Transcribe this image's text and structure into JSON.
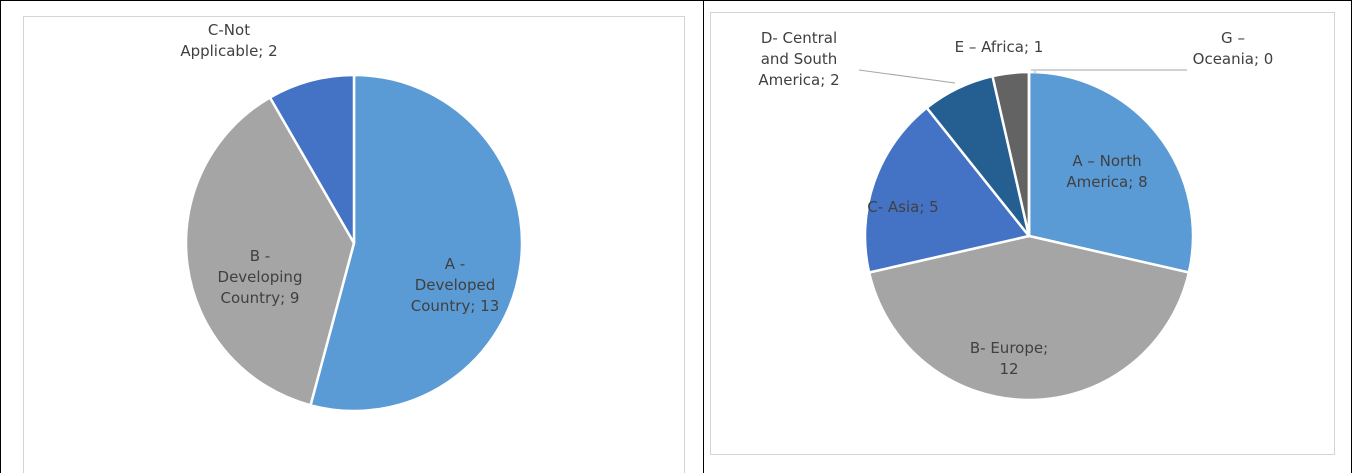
{
  "chart_data": [
    {
      "type": "pie",
      "slices": [
        {
          "label_lines": [
            "A -",
            "Developed",
            "Country; 13"
          ],
          "value": 13,
          "color": "#5B9BD5"
        },
        {
          "label_lines": [
            "B -",
            "Developing",
            "Country; 9"
          ],
          "value": 9,
          "color": "#A5A5A5"
        },
        {
          "label_lines": [
            "C-Not",
            "Applicable; 2"
          ],
          "value": 2,
          "color": "#4472C4"
        }
      ]
    },
    {
      "type": "pie",
      "slices": [
        {
          "label_lines": [
            "A – North",
            "America; 8"
          ],
          "value": 8,
          "color": "#5B9BD5"
        },
        {
          "label_lines": [
            "B- Europe;",
            "12"
          ],
          "value": 12,
          "color": "#A5A5A5"
        },
        {
          "label_lines": [
            "C- Asia; 5"
          ],
          "value": 5,
          "color": "#4472C4"
        },
        {
          "label_lines": [
            "D- Central",
            "and South",
            "America; 2"
          ],
          "value": 2,
          "color": "#255E91"
        },
        {
          "label_lines": [
            "E – Africa; 1"
          ],
          "value": 1,
          "color": "#636363"
        },
        {
          "label_lines": [
            "G –",
            "Oceania; 0"
          ],
          "value": 0,
          "color": "#997300"
        }
      ]
    }
  ]
}
